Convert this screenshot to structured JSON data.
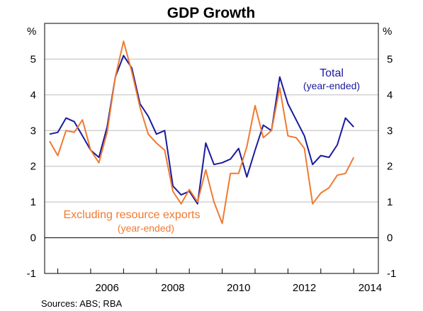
{
  "chart_data": {
    "type": "line",
    "title": "GDP Growth",
    "y_unit_left": "%",
    "y_unit_right": "%",
    "ylim": [
      -1,
      6
    ],
    "yticks": [
      -1,
      0,
      1,
      2,
      3,
      4,
      5
    ],
    "xlim": [
      2004.6,
      2014.75
    ],
    "xticks": [
      2006,
      2008,
      2010,
      2012,
      2014
    ],
    "grid": true,
    "series": [
      {
        "name": "Total",
        "sublabel": "(year-ended)",
        "color": "#1a1aa0",
        "x": [
          2004.75,
          2005.0,
          2005.25,
          2005.5,
          2005.75,
          2006.0,
          2006.25,
          2006.5,
          2006.75,
          2007.0,
          2007.25,
          2007.5,
          2007.75,
          2008.0,
          2008.25,
          2008.5,
          2008.75,
          2009.0,
          2009.25,
          2009.5,
          2009.75,
          2010.0,
          2010.25,
          2010.5,
          2010.75,
          2011.0,
          2011.25,
          2011.5,
          2011.75,
          2012.0,
          2012.25,
          2012.5,
          2012.75,
          2013.0,
          2013.25,
          2013.5,
          2013.75,
          2014.0,
          2014.25
        ],
        "y": [
          2.9,
          2.95,
          3.35,
          3.25,
          2.85,
          2.45,
          2.25,
          3.1,
          4.5,
          5.1,
          4.75,
          3.75,
          3.4,
          2.9,
          3.0,
          1.45,
          1.2,
          1.3,
          0.95,
          2.65,
          2.05,
          2.1,
          2.2,
          2.5,
          1.7,
          2.45,
          3.15,
          3.0,
          4.5,
          3.75,
          3.3,
          2.85,
          2.05,
          2.3,
          2.25,
          2.6,
          3.35,
          3.1,
          null
        ]
      },
      {
        "name": "Excluding resource exports",
        "sublabel": "(year-ended)",
        "color": "#f07a30",
        "x": [
          2004.75,
          2005.0,
          2005.25,
          2005.5,
          2005.75,
          2006.0,
          2006.25,
          2006.5,
          2006.75,
          2007.0,
          2007.25,
          2007.5,
          2007.75,
          2008.0,
          2008.25,
          2008.5,
          2008.75,
          2009.0,
          2009.25,
          2009.5,
          2009.75,
          2010.0,
          2010.25,
          2010.5,
          2010.75,
          2011.0,
          2011.25,
          2011.5,
          2011.75,
          2012.0,
          2012.25,
          2012.5,
          2012.75,
          2013.0,
          2013.25,
          2013.5,
          2013.75,
          2014.0,
          2014.25
        ],
        "y": [
          2.7,
          2.3,
          3.0,
          2.95,
          3.3,
          2.45,
          2.1,
          2.95,
          4.5,
          5.5,
          4.65,
          3.65,
          2.9,
          2.65,
          2.45,
          1.3,
          0.95,
          1.35,
          1.0,
          1.9,
          1.0,
          0.4,
          1.8,
          1.8,
          2.55,
          3.7,
          2.8,
          3.0,
          4.2,
          2.85,
          2.8,
          2.5,
          0.95,
          1.25,
          1.4,
          1.75,
          1.8,
          2.25,
          null
        ]
      }
    ],
    "labels": {
      "total": {
        "line1": "Total",
        "line2": "(year-ended)"
      },
      "excl": {
        "line1": "Excluding resource exports",
        "line2": "(year-ended)"
      }
    },
    "source": "Sources:   ABS; RBA"
  }
}
